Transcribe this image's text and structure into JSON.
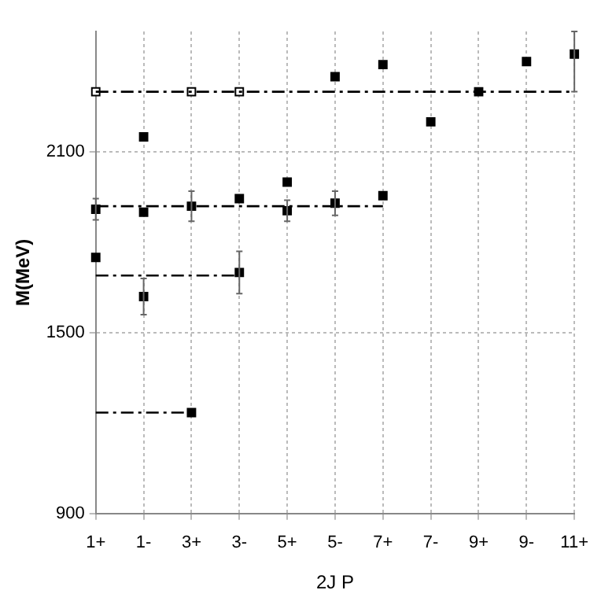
{
  "chart_data": {
    "type": "scatter",
    "xlabel": "2J P",
    "ylabel": "M(MeV)",
    "categories": [
      "1+",
      "1-",
      "3+",
      "3-",
      "5+",
      "5-",
      "7+",
      "7-",
      "9+",
      "9-",
      "11+"
    ],
    "ylim": [
      900,
      2500
    ],
    "yticks": [
      900,
      1500,
      2100
    ],
    "grid": true,
    "legend": false,
    "marker": "square",
    "series": [
      {
        "type": "line",
        "color": "#000000",
        "line_style": "dashed",
        "marker": "none",
        "values": [
          2300,
          2300,
          2300,
          2300,
          2300,
          2300,
          2300,
          2300,
          2300,
          2300,
          2300
        ]
      },
      {
        "type": "line",
        "color": "#000000",
        "line_style": "dashed",
        "marker": "none",
        "values": [
          1920,
          1920,
          1920,
          1920,
          1920,
          1920,
          1920,
          null,
          null,
          null,
          null
        ]
      },
      {
        "type": "line",
        "color": "#000000",
        "line_style": "dashed",
        "marker": "none",
        "values": [
          1690,
          1690,
          1690,
          1690,
          null,
          null,
          null,
          null,
          null,
          null,
          null
        ]
      },
      {
        "type": "line",
        "color": "#000000",
        "line_style": "dashed",
        "marker": "none",
        "values": [
          1235,
          1235,
          1235,
          null,
          null,
          null,
          null,
          null,
          null,
          null,
          null
        ]
      },
      {
        "color": "#ffffff",
        "x": [
          "1+",
          "3+",
          "3-"
        ],
        "values": [
          2300,
          2300,
          2300
        ]
      },
      {
        "color": "#000000",
        "x": [
          "1+",
          "1+",
          "1-",
          "1-",
          "1-",
          "3+",
          "3+",
          "3-",
          "3-",
          "5+",
          "5+",
          "5-",
          "5-",
          "7+",
          "7+",
          "7-",
          "9+",
          "9-",
          "11+"
        ],
        "values": [
          1910,
          1750,
          2150,
          1900,
          1620,
          1920,
          1235,
          1945,
          1700,
          2000,
          1905,
          2350,
          1930,
          2390,
          1955,
          2200,
          2300,
          2400,
          2425
        ],
        "errors": [
          35,
          null,
          null,
          null,
          60,
          50,
          null,
          null,
          70,
          null,
          35,
          null,
          40,
          null,
          null,
          null,
          null,
          null,
          [
            2300,
            2500
          ]
        ]
      }
    ]
  }
}
